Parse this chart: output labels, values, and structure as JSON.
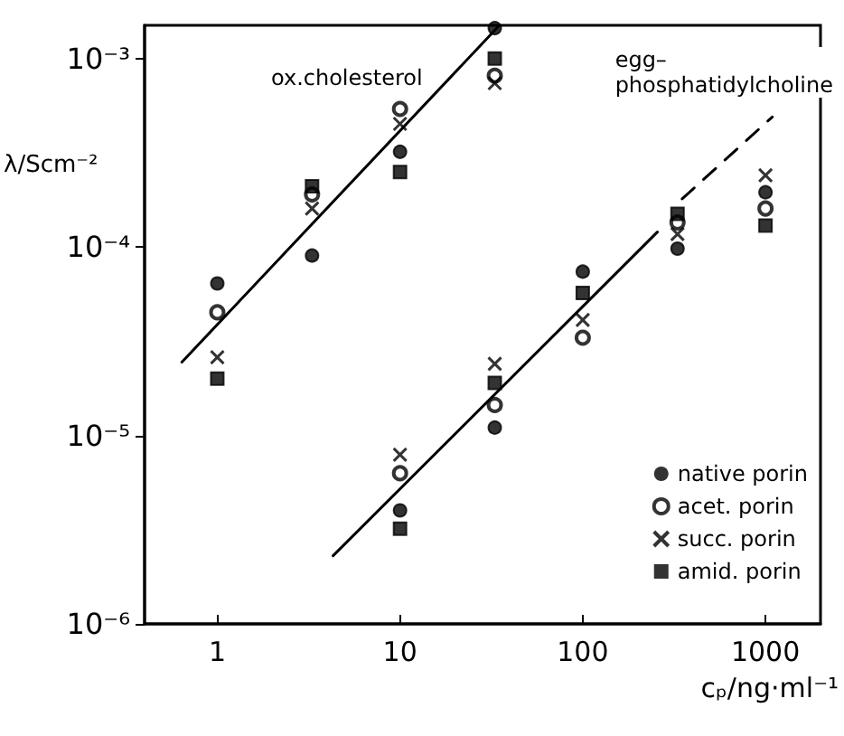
{
  "chart_data": {
    "type": "scatter",
    "xlabel": "cₚ/ng·ml⁻¹",
    "ylabel": "λ/Scm⁻²",
    "log": "xy",
    "grid": false,
    "legend": "bottom right",
    "xlim": [
      0.4,
      2000
    ],
    "ylim": [
      1e-06,
      0.0015
    ],
    "xticks": [
      1,
      10,
      100,
      1000
    ],
    "yticks": [
      {
        "value": 1e-06,
        "label": "10⁻⁶"
      },
      {
        "value": 1e-05,
        "label": "10⁻⁵"
      },
      {
        "value": 0.0001,
        "label": "10⁻⁴"
      },
      {
        "value": 0.001,
        "label": "10⁻³"
      }
    ],
    "x": [
      1,
      3.3,
      10,
      33,
      10,
      33,
      100,
      330,
      1000
    ],
    "series": [
      {
        "name": "native porin",
        "color": "#000000",
        "marker": "circle",
        "values": [
          6.4e-05,
          9e-05,
          0.00032,
          0.00145,
          4e-06,
          1.1e-05,
          7.4e-05,
          9.8e-05,
          0.000195
        ]
      },
      {
        "name": "acet. porin",
        "color": "#000000",
        "marker": "open_circle",
        "values": [
          4.5e-05,
          0.00019,
          0.00054,
          0.00081,
          6.3e-06,
          1.45e-05,
          3.3e-05,
          0.000135,
          0.00016
        ]
      },
      {
        "name": "succ. porin",
        "color": "#000000",
        "marker": "cross",
        "values": [
          2.6e-05,
          0.00016,
          0.00045,
          0.00074,
          7.9e-06,
          2.4e-05,
          4.1e-05,
          0.000117,
          0.00024
        ]
      },
      {
        "name": "amid. porin",
        "color": "#000000",
        "marker": "square",
        "values": [
          2e-05,
          0.00021,
          0.00025,
          0.001,
          3.2e-06,
          1.9e-05,
          5.7e-05,
          0.00015,
          0.00013
        ]
      },
      {
        "type": "line",
        "color": "#000000",
        "marker": "none",
        "line_style": "solid",
        "x": [
          0.64,
          35
        ],
        "values": [
          2.45e-05,
          0.0015
        ]
      },
      {
        "type": "line",
        "color": "#000000",
        "marker": "none",
        "line_style": "solid",
        "x": [
          4.3,
          256
        ],
        "values": [
          2.3e-06,
          0.00012
        ]
      },
      {
        "type": "line",
        "color": "#000000",
        "marker": "none",
        "line_style": "dashed",
        "x": [
          350,
          1090
        ],
        "values": [
          0.00018,
          0.00049
        ]
      }
    ],
    "annotations": [
      "ox.cholesterol",
      "egg–\nphosphatidylcholine"
    ]
  }
}
